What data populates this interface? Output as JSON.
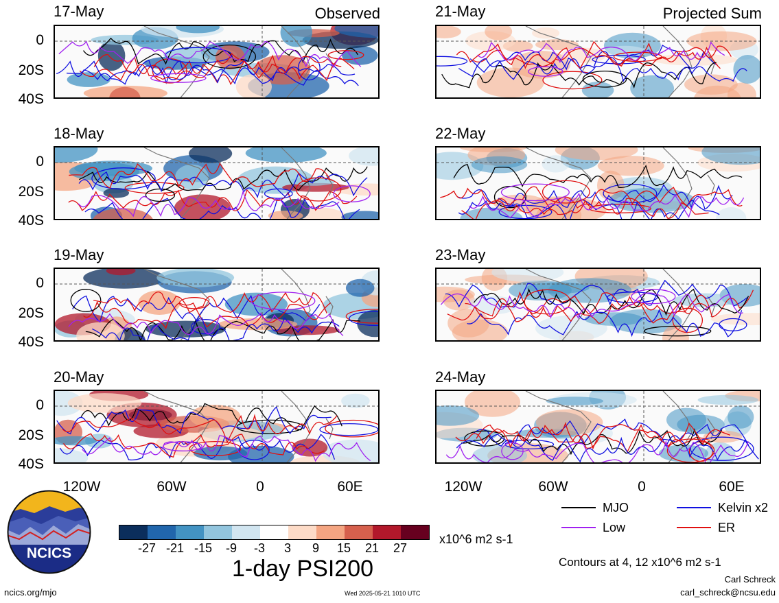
{
  "panels_left": [
    {
      "date": "17-May",
      "note": "Observed"
    },
    {
      "date": "18-May",
      "note": ""
    },
    {
      "date": "19-May",
      "note": ""
    },
    {
      "date": "20-May",
      "note": ""
    }
  ],
  "panels_right": [
    {
      "date": "21-May",
      "note": "Projected Sum"
    },
    {
      "date": "22-May",
      "note": ""
    },
    {
      "date": "23-May",
      "note": ""
    },
    {
      "date": "24-May",
      "note": ""
    }
  ],
  "lat_labels": [
    "0",
    "20S",
    "40S"
  ],
  "lon_labels": [
    "120W",
    "60W",
    "0",
    "60E"
  ],
  "legend": {
    "mjo": "MJO",
    "kelvin": "Kelvin x2",
    "low": "Low",
    "er": "ER",
    "contours": "Contours at 4, 12 x10^6 m2 s-1"
  },
  "colorbar": {
    "ticks": [
      "-27",
      "-21",
      "-15",
      "-9",
      "-3",
      "3",
      "9",
      "15",
      "21",
      "27"
    ],
    "colors": [
      "#0b2e5c",
      "#2166ac",
      "#4393c3",
      "#92c5de",
      "#d1e5f0",
      "#ffffff",
      "#fddbc7",
      "#f4a582",
      "#d6604d",
      "#b2182b",
      "#67001f"
    ],
    "units": "x10^6 m2 s-1"
  },
  "title": "1-day PSI200",
  "author": "Carl Schreck",
  "email": "carl_schreck@ncsu.edu",
  "site": "ncics.org/mjo",
  "timestamp": "Wed 2025-05-21 1010 UTC",
  "logo_text": "NCICS",
  "line_colors": {
    "mjo": "#000000",
    "kelvin": "#1010e0",
    "low": "#a020f0",
    "er": "#e01010"
  }
}
